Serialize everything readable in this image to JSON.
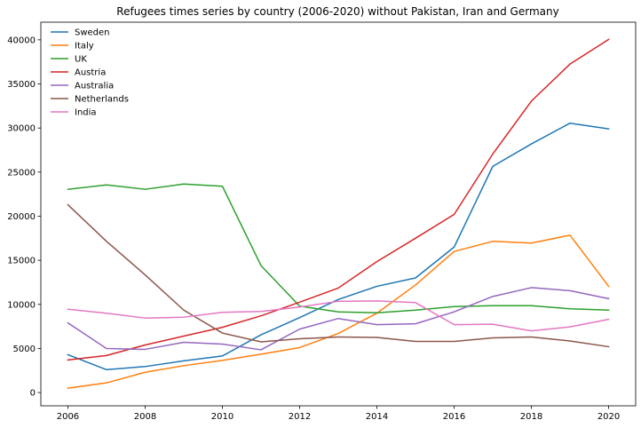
{
  "chart_data": {
    "type": "line",
    "title": "Refugees times series by country (2006-2020) without Pakistan, Iran and Germany",
    "xlabel": "",
    "ylabel": "",
    "x": [
      2006,
      2007,
      2008,
      2009,
      2010,
      2011,
      2012,
      2013,
      2014,
      2015,
      2016,
      2017,
      2018,
      2019,
      2020
    ],
    "xlim": [
      2005.3,
      2020.7
    ],
    "ylim": [
      -1500,
      42000
    ],
    "xticks": [
      "2006",
      "2008",
      "2010",
      "2012",
      "2014",
      "2016",
      "2018",
      "2020"
    ],
    "yticks": [
      "0",
      "5000",
      "10000",
      "15000",
      "20000",
      "25000",
      "30000",
      "35000",
      "40000"
    ],
    "grid": false,
    "legend_position": "top-left",
    "series": [
      {
        "name": "Sweden",
        "color": "#1f77b4",
        "values": [
          4300,
          2600,
          2950,
          3600,
          4150,
          6550,
          8500,
          10550,
          12050,
          13000,
          16500,
          25650,
          28200,
          30550,
          29900
        ]
      },
      {
        "name": "Italy",
        "color": "#ff7f0e",
        "values": [
          500,
          1100,
          2300,
          3050,
          3650,
          4350,
          5100,
          6700,
          9000,
          12200,
          16000,
          17150,
          16950,
          17850,
          12050
        ]
      },
      {
        "name": "UK",
        "color": "#2ca02c",
        "values": [
          23050,
          23550,
          23050,
          23650,
          23400,
          14400,
          9800,
          9150,
          9050,
          9350,
          9750,
          9850,
          9850,
          9500,
          9350
        ]
      },
      {
        "name": "Austria",
        "color": "#d62728",
        "values": [
          3700,
          4200,
          5400,
          6400,
          7400,
          8700,
          10250,
          11850,
          14850,
          17500,
          20200,
          27050,
          33050,
          37250,
          40050
        ]
      },
      {
        "name": "Australia",
        "color": "#9467bd",
        "values": [
          7900,
          5000,
          4900,
          5700,
          5500,
          4850,
          7200,
          8400,
          7700,
          7800,
          9150,
          10900,
          11900,
          11550,
          10650
        ]
      },
      {
        "name": "Netherlands",
        "color": "#8c564b",
        "values": [
          21300,
          17150,
          13350,
          9350,
          6750,
          5750,
          6100,
          6300,
          6250,
          5800,
          5800,
          6200,
          6300,
          5850,
          5200
        ]
      },
      {
        "name": "India",
        "color": "#e377c2",
        "values": [
          9450,
          9000,
          8450,
          8550,
          9100,
          9200,
          9700,
          10350,
          10400,
          10200,
          7700,
          7750,
          7000,
          7450,
          8300
        ]
      }
    ]
  }
}
